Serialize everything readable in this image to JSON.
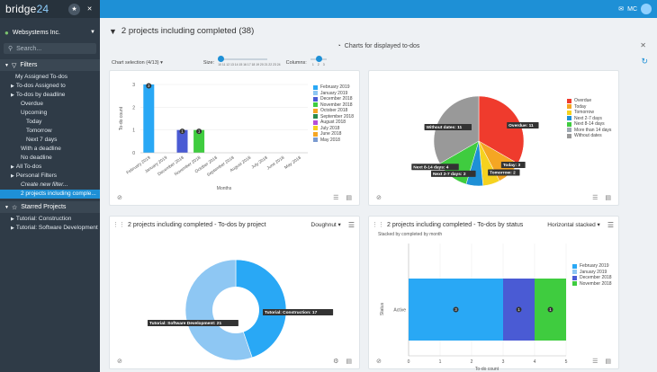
{
  "app": {
    "logo_main": "bridge",
    "logo_num": "24",
    "user_initials": "MC"
  },
  "sidebar": {
    "org": "Websystems Inc.",
    "search_placeholder": "Search...",
    "filters_title": "Filters",
    "items": [
      {
        "label": "My Assigned To-dos",
        "indent": 0,
        "arrow": false
      },
      {
        "label": "To-dos Assigned to",
        "indent": 0,
        "arrow": true
      },
      {
        "label": "To-dos by deadline",
        "indent": 0,
        "arrow": true
      },
      {
        "label": "Overdue",
        "indent": 1,
        "arrow": false
      },
      {
        "label": "Upcoming",
        "indent": 1,
        "arrow": false
      },
      {
        "label": "Today",
        "indent": 2,
        "arrow": false
      },
      {
        "label": "Tomorrow",
        "indent": 2,
        "arrow": false
      },
      {
        "label": "Next 7 days",
        "indent": 2,
        "arrow": false
      },
      {
        "label": "With a deadline",
        "indent": 1,
        "arrow": false
      },
      {
        "label": "No deadline",
        "indent": 1,
        "arrow": false
      },
      {
        "label": "All To-dos",
        "indent": 0,
        "arrow": true
      },
      {
        "label": "Personal Filters",
        "indent": 0,
        "arrow": true
      },
      {
        "label": "Create new filter...",
        "indent": 1,
        "arrow": false,
        "italic": true
      },
      {
        "label": "2 projects including comple...",
        "indent": 1,
        "arrow": false,
        "active": true
      }
    ],
    "starred_title": "Starred Projects",
    "starred": [
      "Tutorial: Construction",
      "Tutorial: Software Development"
    ]
  },
  "main": {
    "title": "2 projects including completed",
    "count": "(38)",
    "charts_header": "Charts for displayed to-dos",
    "chart_selection": "Chart selection (4/13)",
    "size_label": "Size:",
    "size_ticks": [
      "10",
      "11",
      "12",
      "13",
      "14",
      "15",
      "16",
      "17",
      "18",
      "19",
      "20",
      "21",
      "22",
      "23",
      "24"
    ],
    "columns_label": "Columns:",
    "column_ticks": [
      "1",
      "2",
      "3"
    ],
    "size_value": "10",
    "columns_value": "2"
  },
  "panels": {
    "p3_title": "2 projects including completed - To-dos by project",
    "p3_type": "Doughnut",
    "p4_title": "2 projects including completed - To-dos by status",
    "p4_type": "Horizontal stacked",
    "p4_subtitle": "Stacked by completed by month"
  },
  "colors": {
    "feb2019": "#29a8f5",
    "jan2019": "#8ec7f3",
    "dec2018": "#4a5bd4",
    "nov2018": "#3fcc3f",
    "sep2018": "#2c8a4c",
    "aug2018": "#b44fd8",
    "jul2018": "#f5d21f",
    "jun2018": "#f5a623",
    "may2018": "#7a9bd0",
    "overdue": "#ef3b2d",
    "today": "#f5a623",
    "tomorrow": "#f5d21f",
    "next27": "#1e90d6",
    "next814": "#3fcc3f",
    "more14": "#9fa9b3",
    "without": "#999999"
  },
  "chart_data": [
    {
      "type": "bar",
      "categories": [
        "February 2019",
        "January 2019",
        "December 2018",
        "November 2018",
        "October 2018",
        "September 2018",
        "August 2018",
        "July 2018",
        "June 2018",
        "May 2018"
      ],
      "values": [
        3,
        0,
        1,
        1,
        0,
        0,
        0,
        0,
        0,
        0
      ],
      "xlabel": "Months",
      "ylabel": "To-do count",
      "ylim": [
        0,
        3
      ],
      "yticks": [
        "0",
        "1",
        "2",
        "3"
      ],
      "legend": [
        "February 2019",
        "January 2019",
        "December 2018",
        "November 2018",
        "October 2018",
        "September 2018",
        "August 2018",
        "July 2018",
        "June 2018",
        "May 2018"
      ]
    },
    {
      "type": "pie",
      "labels": [
        "Overdue",
        "Today",
        "Tomorrow",
        "Next 2-7 days",
        "Next 8-14 days",
        "More than 14 days",
        "Without dates"
      ],
      "values": [
        11,
        3,
        2,
        2,
        4,
        0,
        11
      ],
      "legend": [
        "Overdue",
        "Today",
        "Tomorrow",
        "Next 2-7 days",
        "Next 8-14 days",
        "More than 14 days",
        "Without dates"
      ]
    },
    {
      "type": "pie",
      "donut": true,
      "labels": [
        "Tutorial: Construction",
        "Tutorial: Software Development"
      ],
      "values": [
        17,
        21
      ]
    },
    {
      "type": "bar",
      "orientation": "horizontal",
      "stacked": true,
      "categories": [
        "Active"
      ],
      "series": [
        {
          "name": "February 2019",
          "values": [
            3
          ]
        },
        {
          "name": "January 2019",
          "values": [
            0
          ]
        },
        {
          "name": "December 2018",
          "values": [
            1
          ]
        },
        {
          "name": "November 2018",
          "values": [
            1
          ]
        }
      ],
      "xlabel": "To-do count",
      "ylabel": "Status",
      "xlim": [
        0,
        5
      ],
      "xticks": [
        "0",
        "1",
        "2",
        "3",
        "4",
        "5"
      ]
    }
  ]
}
